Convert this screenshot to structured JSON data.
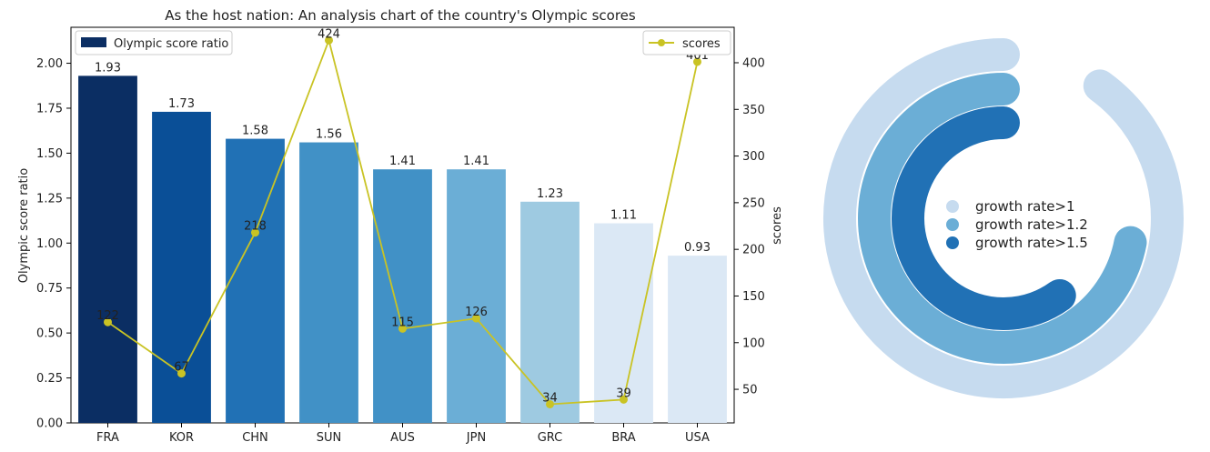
{
  "chart_data": [
    {
      "type": "bar",
      "title": "As the host nation: An analysis chart of the country's Olympic scores",
      "categories": [
        "FRA",
        "KOR",
        "CHN",
        "SUN",
        "AUS",
        "JPN",
        "GRC",
        "BRA",
        "USA"
      ],
      "xlabel": "",
      "ylabel": "Olympic score ratio",
      "y2label": "scores",
      "ylim": [
        0,
        2.2
      ],
      "y2lim": [
        14,
        438
      ],
      "yticks": [
        "0.00",
        "0.25",
        "0.50",
        "0.75",
        "1.00",
        "1.25",
        "1.50",
        "1.75",
        "2.00"
      ],
      "y2ticks": [
        "50",
        "100",
        "150",
        "200",
        "250",
        "300",
        "350",
        "400"
      ],
      "grid": false,
      "series": [
        {
          "name": "Olympic score ratio",
          "kind": "bar",
          "axis": "left",
          "values": [
            1.93,
            1.73,
            1.58,
            1.56,
            1.41,
            1.41,
            1.23,
            1.11,
            0.93
          ],
          "labels": [
            "1.93",
            "1.73",
            "1.58",
            "1.56",
            "1.41",
            "1.41",
            "1.23",
            "1.11",
            "0.93"
          ],
          "colors": [
            "#0b2e63",
            "#0a4f97",
            "#2171b5",
            "#4191c6",
            "#4191c6",
            "#6baed6",
            "#9ecae1",
            "#dbe8f5",
            "#dbe8f5"
          ],
          "legend_color": "#0b2e63",
          "legend_position": "upper-left"
        },
        {
          "name": "scores",
          "kind": "line",
          "axis": "right",
          "values": [
            122,
            67,
            218,
            424,
            115,
            126,
            34,
            39,
            401
          ],
          "labels": [
            "122",
            "67",
            "218",
            "424",
            "115",
            "126",
            "34",
            "39",
            "401"
          ],
          "color": "#c9c324",
          "legend_position": "upper-right"
        }
      ]
    },
    {
      "type": "radial-bar",
      "series": [
        {
          "name": "growth rate>1",
          "fraction": 0.9,
          "color": "#c6dbef"
        },
        {
          "name": "growth rate>1.2",
          "fraction": 0.72,
          "color": "#6baed6"
        },
        {
          "name": "growth rate>1.5",
          "fraction": 0.6,
          "color": "#2171b5"
        }
      ],
      "legend_position": "center"
    }
  ]
}
